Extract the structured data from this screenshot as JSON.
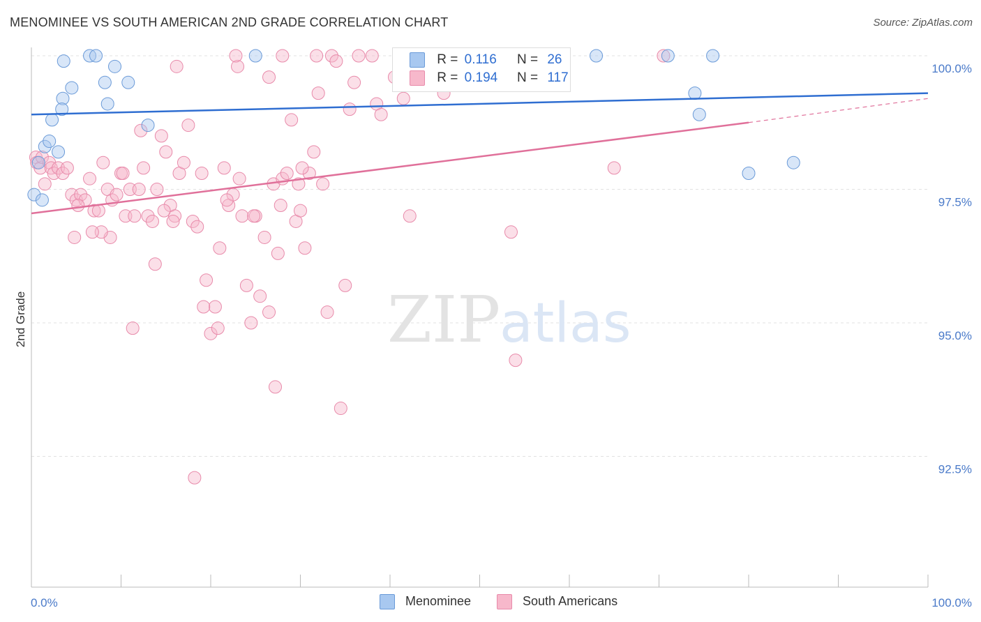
{
  "header": {
    "title": "MENOMINEE VS SOUTH AMERICAN 2ND GRADE CORRELATION CHART",
    "source": "Source: ZipAtlas.com"
  },
  "watermark": {
    "zip": "ZIP",
    "atlas": "atlas"
  },
  "legend": {
    "rows": [
      {
        "r_label": "R =",
        "r_value": "0.116",
        "n_label": "N =",
        "n_value": "26",
        "color": "#a8c8f0",
        "border": "#6a9ad8"
      },
      {
        "r_label": "R =",
        "r_value": "0.194",
        "n_label": "N =",
        "n_value": "117",
        "color": "#f7b8cb",
        "border": "#e88aaa"
      }
    ]
  },
  "bottom_legend": {
    "series": [
      {
        "name": "Menominee",
        "color": "#a8c8f0",
        "border": "#6a9ad8"
      },
      {
        "name": "South Americans",
        "color": "#f7b8cb",
        "border": "#e88aaa"
      }
    ]
  },
  "chart_data": {
    "type": "scatter",
    "ylabel": "2nd Grade",
    "x_tick_labels": [
      "0.0%",
      "100.0%"
    ],
    "y_tick_labels": [
      "100.0%",
      "97.5%",
      "95.0%",
      "92.5%"
    ],
    "y_ticks": [
      100.0,
      97.5,
      95.0,
      92.5
    ],
    "xlim": [
      0,
      100
    ],
    "ylim": [
      90.0,
      100.4
    ],
    "colors": {
      "menominee": "#6a9ad8",
      "menominee_line": "#2f6ed1",
      "south": "#e88aaa",
      "south_line": "#e0709a"
    },
    "series": [
      {
        "name": "Menominee",
        "trend": {
          "x0": 0,
          "y0": 98.9,
          "x1": 100,
          "y1": 99.3
        },
        "points": [
          [
            0.3,
            97.4
          ],
          [
            1.2,
            97.3
          ],
          [
            0.8,
            98.0
          ],
          [
            1.5,
            98.3
          ],
          [
            2.0,
            98.4
          ],
          [
            2.3,
            98.8
          ],
          [
            3.0,
            98.2
          ],
          [
            3.5,
            99.2
          ],
          [
            3.4,
            99.0
          ],
          [
            4.5,
            99.4
          ],
          [
            3.6,
            99.9
          ],
          [
            6.5,
            100.0
          ],
          [
            7.2,
            100.0
          ],
          [
            8.2,
            99.5
          ],
          [
            8.5,
            99.1
          ],
          [
            9.3,
            99.8
          ],
          [
            10.8,
            99.5
          ],
          [
            13.0,
            98.7
          ],
          [
            25.0,
            100.0
          ],
          [
            63.0,
            100.0
          ],
          [
            71.0,
            100.0
          ],
          [
            76.0,
            100.0
          ],
          [
            74.0,
            99.3
          ],
          [
            74.5,
            98.9
          ],
          [
            80.0,
            97.8
          ],
          [
            85.0,
            98.0
          ]
        ]
      },
      {
        "name": "South Americans",
        "trend": {
          "x0": 0,
          "y0": 97.05,
          "x1": 80,
          "y1": 98.75,
          "ext_x1": 100,
          "ext_y1": 99.2
        },
        "points": [
          [
            0.5,
            98.1
          ],
          [
            0.6,
            98.0
          ],
          [
            1.0,
            97.9
          ],
          [
            1.2,
            98.1
          ],
          [
            1.5,
            97.6
          ],
          [
            2.0,
            98.0
          ],
          [
            2.2,
            97.9
          ],
          [
            2.5,
            97.8
          ],
          [
            3.0,
            97.9
          ],
          [
            3.5,
            97.8
          ],
          [
            4.0,
            97.9
          ],
          [
            4.5,
            97.4
          ],
          [
            5.0,
            97.3
          ],
          [
            5.5,
            97.4
          ],
          [
            6.0,
            97.3
          ],
          [
            6.5,
            97.7
          ],
          [
            7.0,
            97.1
          ],
          [
            7.5,
            97.1
          ],
          [
            8.0,
            98.0
          ],
          [
            8.5,
            97.5
          ],
          [
            9.0,
            97.3
          ],
          [
            9.5,
            97.4
          ],
          [
            10.0,
            97.8
          ],
          [
            10.5,
            97.0
          ],
          [
            11.0,
            97.5
          ],
          [
            11.5,
            97.0
          ],
          [
            12.0,
            97.5
          ],
          [
            12.5,
            97.9
          ],
          [
            13.0,
            97.0
          ],
          [
            13.5,
            96.9
          ],
          [
            14.0,
            97.5
          ],
          [
            14.5,
            98.5
          ],
          [
            15.0,
            98.2
          ],
          [
            15.5,
            97.2
          ],
          [
            16.0,
            97.0
          ],
          [
            16.5,
            97.8
          ],
          [
            17.0,
            98.0
          ],
          [
            17.5,
            98.7
          ],
          [
            18.0,
            96.9
          ],
          [
            18.5,
            96.8
          ],
          [
            19.0,
            97.8
          ],
          [
            19.5,
            95.8
          ],
          [
            20.0,
            94.8
          ],
          [
            20.5,
            95.3
          ],
          [
            21.0,
            96.4
          ],
          [
            21.5,
            97.9
          ],
          [
            22.0,
            97.2
          ],
          [
            22.5,
            97.4
          ],
          [
            23.0,
            99.8
          ],
          [
            23.5,
            97.0
          ],
          [
            24.0,
            95.7
          ],
          [
            24.5,
            95.0
          ],
          [
            25.0,
            97.0
          ],
          [
            25.5,
            95.5
          ],
          [
            26.0,
            96.6
          ],
          [
            26.5,
            95.2
          ],
          [
            27.0,
            97.6
          ],
          [
            27.5,
            96.3
          ],
          [
            28.0,
            97.7
          ],
          [
            28.5,
            97.8
          ],
          [
            29.0,
            98.8
          ],
          [
            29.5,
            96.9
          ],
          [
            30.0,
            97.1
          ],
          [
            30.5,
            96.4
          ],
          [
            31.0,
            97.8
          ],
          [
            31.5,
            98.2
          ],
          [
            32.0,
            99.3
          ],
          [
            32.5,
            97.6
          ],
          [
            33.0,
            95.2
          ],
          [
            33.5,
            100.0
          ],
          [
            34.0,
            99.9
          ],
          [
            34.5,
            93.4
          ],
          [
            35.0,
            95.7
          ],
          [
            35.5,
            99.0
          ],
          [
            36.0,
            99.5
          ],
          [
            36.5,
            100.0
          ],
          [
            38.0,
            100.0
          ],
          [
            38.5,
            99.1
          ],
          [
            39.0,
            98.9
          ],
          [
            40.5,
            99.6
          ],
          [
            41.5,
            99.2
          ],
          [
            42.5,
            100.0
          ],
          [
            43.0,
            99.7
          ],
          [
            44.0,
            99.8
          ],
          [
            45.0,
            99.9
          ],
          [
            46.0,
            99.3
          ],
          [
            28.0,
            100.0
          ],
          [
            31.8,
            100.0
          ],
          [
            26.5,
            99.6
          ],
          [
            23.2,
            97.7
          ],
          [
            19.2,
            95.3
          ],
          [
            18.2,
            92.1
          ],
          [
            20.8,
            94.9
          ],
          [
            13.8,
            96.1
          ],
          [
            11.3,
            94.9
          ],
          [
            27.2,
            93.8
          ],
          [
            22.8,
            100.0
          ],
          [
            27.8,
            97.2
          ],
          [
            16.2,
            99.8
          ],
          [
            12.2,
            98.6
          ],
          [
            29.8,
            97.6
          ],
          [
            30.2,
            97.9
          ],
          [
            8.8,
            96.6
          ],
          [
            7.8,
            96.7
          ],
          [
            5.2,
            97.2
          ],
          [
            4.8,
            96.6
          ],
          [
            6.8,
            96.7
          ],
          [
            10.2,
            97.8
          ],
          [
            53.5,
            96.7
          ],
          [
            54.0,
            94.3
          ],
          [
            42.2,
            97.0
          ],
          [
            65.0,
            97.9
          ],
          [
            70.5,
            100.0
          ],
          [
            14.8,
            97.1
          ],
          [
            15.8,
            96.9
          ],
          [
            24.8,
            97.0
          ],
          [
            21.8,
            97.3
          ]
        ]
      }
    ]
  }
}
